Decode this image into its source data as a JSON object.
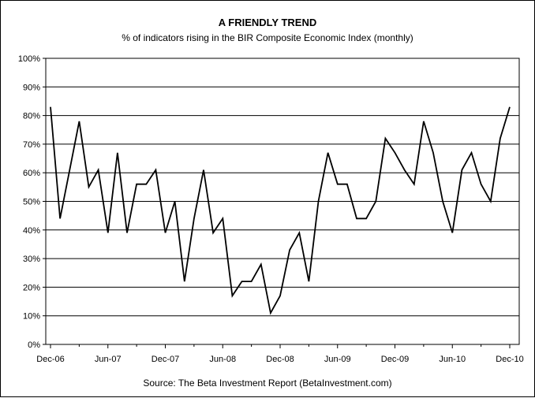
{
  "chart_data": {
    "type": "line",
    "title": "A FRIENDLY TREND",
    "subtitle": "% of indicators rising in the BIR Composite Economic Index (monthly)",
    "source": "Source: The Beta Investment Report (BetaInvestment.com)",
    "xlabel": "",
    "ylabel": "",
    "ylim": [
      0,
      100
    ],
    "y_ticks": [
      0,
      10,
      20,
      30,
      40,
      50,
      60,
      70,
      80,
      90,
      100
    ],
    "y_tick_suffix": "%",
    "x_tick_labels": [
      {
        "label": "Dec-06",
        "index": 0
      },
      {
        "label": "Jun-07",
        "index": 6
      },
      {
        "label": "Dec-07",
        "index": 12
      },
      {
        "label": "Jun-08",
        "index": 18
      },
      {
        "label": "Dec-08",
        "index": 24
      },
      {
        "label": "Jun-09",
        "index": 30
      },
      {
        "label": "Dec-09",
        "index": 36
      },
      {
        "label": "Jun-10",
        "index": 42
      },
      {
        "label": "Dec-10",
        "index": 48
      }
    ],
    "grid": true,
    "legend": "none",
    "line_color": "#000000",
    "series": [
      {
        "values": [
          83,
          44,
          61,
          78,
          55,
          61,
          39,
          67,
          39,
          56,
          56,
          61,
          39,
          50,
          22,
          44,
          61,
          39,
          44,
          17,
          22,
          22,
          28,
          11,
          17,
          33,
          39,
          22,
          50,
          67,
          56,
          56,
          44,
          44,
          50,
          72,
          67,
          61,
          56,
          78,
          67,
          50,
          39,
          61,
          67,
          56,
          50,
          72,
          83
        ]
      }
    ]
  }
}
